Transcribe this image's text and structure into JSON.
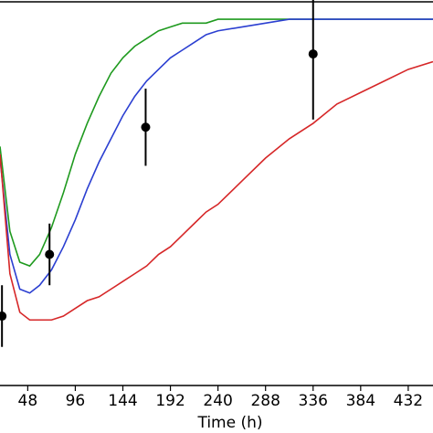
{
  "chart_data": {
    "type": "line",
    "xlabel": "Time (h)",
    "xlim": [
      20,
      457
    ],
    "ylim": [
      0,
      1
    ],
    "xticks": [
      48,
      96,
      144,
      192,
      240,
      288,
      336,
      384,
      432
    ],
    "x": [
      20,
      30,
      40,
      50,
      60,
      72,
      84,
      96,
      108,
      120,
      132,
      144,
      156,
      168,
      180,
      192,
      204,
      216,
      228,
      240,
      264,
      288,
      312,
      336,
      360,
      384,
      408,
      432,
      457
    ],
    "series": [
      {
        "color": "#1f9a1f",
        "values": [
          0.62,
          0.4,
          0.32,
          0.31,
          0.34,
          0.41,
          0.5,
          0.6,
          0.68,
          0.75,
          0.81,
          0.85,
          0.88,
          0.9,
          0.92,
          0.93,
          0.94,
          0.94,
          0.94,
          0.95,
          0.95,
          0.95,
          0.95,
          0.95,
          0.95,
          0.95,
          0.95,
          0.95,
          0.95
        ]
      },
      {
        "color": "#2b3fd1",
        "values": [
          0.59,
          0.34,
          0.25,
          0.24,
          0.26,
          0.3,
          0.36,
          0.43,
          0.51,
          0.58,
          0.64,
          0.7,
          0.75,
          0.79,
          0.82,
          0.85,
          0.87,
          0.89,
          0.91,
          0.92,
          0.93,
          0.94,
          0.95,
          0.95,
          0.95,
          0.95,
          0.95,
          0.95,
          0.95
        ]
      },
      {
        "color": "#d62728",
        "values": [
          0.6,
          0.29,
          0.19,
          0.17,
          0.17,
          0.17,
          0.18,
          0.2,
          0.22,
          0.23,
          0.25,
          0.27,
          0.29,
          0.31,
          0.34,
          0.36,
          0.39,
          0.42,
          0.45,
          0.47,
          0.53,
          0.59,
          0.64,
          0.68,
          0.73,
          0.76,
          0.79,
          0.82,
          0.84
        ]
      }
    ],
    "points": {
      "color": "#000000",
      "x": [
        22,
        70,
        167,
        336
      ],
      "values": [
        0.18,
        0.34,
        0.67,
        0.86
      ],
      "errors": [
        0.08,
        0.08,
        0.1,
        0.17
      ]
    }
  }
}
